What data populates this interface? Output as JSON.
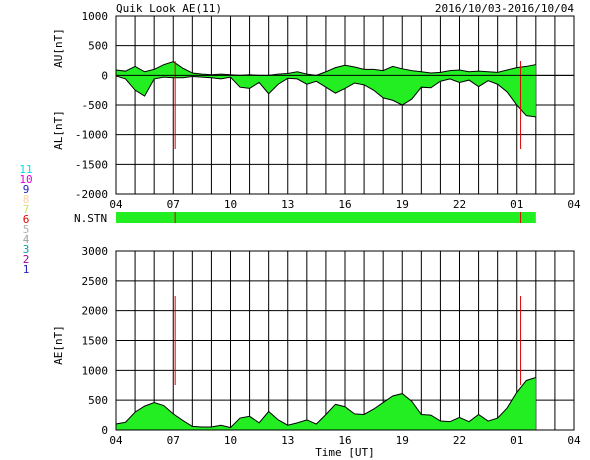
{
  "header": {
    "title": "Quik Look AE(11)",
    "date_range": "2016/10/03-2016/10/04"
  },
  "station_legend": [
    {
      "label": "11",
      "color": "#00e0e0"
    },
    {
      "label": "10",
      "color": "#e000e0"
    },
    {
      "label": "9",
      "color": "#2020c0"
    },
    {
      "label": "8",
      "color": "#ffd0a0"
    },
    {
      "label": "7",
      "color": "#d0e060"
    },
    {
      "label": "6",
      "color": "#e00000"
    },
    {
      "label": "5",
      "color": "#b0b0b0"
    },
    {
      "label": "4",
      "color": "#a0a0a0"
    },
    {
      "label": "3",
      "color": "#00a0a0"
    },
    {
      "label": "2",
      "color": "#a000a0"
    },
    {
      "label": "1",
      "color": "#2020c0"
    }
  ],
  "colors": {
    "fill": "#22ee22",
    "line": "#000000",
    "marker": "#dd0000",
    "grid": "#000000"
  },
  "chart_data": [
    {
      "type": "area",
      "panel": "AU/AL",
      "ylabel_top": "AU[nT]",
      "ylabel_bottom": "AL[nT]",
      "ylim": [
        -2000,
        1000
      ],
      "yticks": [
        1000,
        500,
        0,
        -500,
        -1000,
        -1500,
        -2000
      ],
      "x_tick_labels": [
        "04",
        "07",
        "10",
        "13",
        "16",
        "19",
        "22",
        "01",
        "04"
      ],
      "x_tick_hours": [
        0,
        3,
        6,
        9,
        12,
        15,
        18,
        21,
        24
      ],
      "xlim_hours": [
        0,
        24
      ],
      "grid": true,
      "x_hours": [
        0,
        0.5,
        1,
        1.5,
        2,
        2.5,
        3,
        3.5,
        4,
        4.5,
        5,
        5.5,
        6,
        6.5,
        7,
        7.5,
        8,
        8.5,
        9,
        9.5,
        10,
        10.5,
        11,
        11.5,
        12,
        12.5,
        13,
        13.5,
        14,
        14.5,
        15,
        15.5,
        16,
        16.5,
        17,
        17.5,
        18,
        18.5,
        19,
        19.5,
        20,
        20.5,
        21,
        21.5,
        22
      ],
      "series": [
        {
          "name": "AU",
          "values": [
            90,
            70,
            150,
            60,
            100,
            180,
            230,
            120,
            40,
            20,
            10,
            20,
            10,
            0,
            10,
            0,
            0,
            20,
            30,
            60,
            20,
            0,
            60,
            130,
            170,
            140,
            100,
            100,
            80,
            150,
            110,
            80,
            60,
            40,
            50,
            80,
            90,
            60,
            70,
            60,
            50,
            90,
            130,
            150,
            180
          ]
        },
        {
          "name": "AL",
          "values": [
            -10,
            -60,
            -250,
            -350,
            -60,
            -30,
            -40,
            -40,
            -20,
            -30,
            -40,
            -60,
            -30,
            -200,
            -220,
            -120,
            -310,
            -150,
            -50,
            -60,
            -150,
            -100,
            -200,
            -300,
            -220,
            -130,
            -160,
            -250,
            -380,
            -420,
            -500,
            -400,
            -200,
            -210,
            -100,
            -60,
            -120,
            -80,
            -190,
            -90,
            -150,
            -280,
            -500,
            -680,
            -700
          ]
        }
      ],
      "markers_hours": [
        3.1,
        21.2
      ]
    },
    {
      "type": "bar",
      "panel": "N.STN",
      "label": "N.STN",
      "xlim_hours": [
        0,
        24
      ],
      "extent_hours": [
        0,
        22
      ],
      "markers_hours": [
        3.1,
        21.2
      ]
    },
    {
      "type": "area",
      "panel": "AE",
      "ylabel": "AE[nT]",
      "xlabel": "Time [UT]",
      "ylim": [
        0,
        3000
      ],
      "yticks": [
        3000,
        2500,
        2000,
        1500,
        1000,
        500,
        0
      ],
      "x_tick_labels": [
        "04",
        "07",
        "10",
        "13",
        "16",
        "19",
        "22",
        "01",
        "04"
      ],
      "x_tick_hours": [
        0,
        3,
        6,
        9,
        12,
        15,
        18,
        21,
        24
      ],
      "xlim_hours": [
        0,
        24
      ],
      "grid": true,
      "x_hours": [
        0,
        0.5,
        1,
        1.5,
        2,
        2.5,
        3,
        3.5,
        4,
        4.5,
        5,
        5.5,
        6,
        6.5,
        7,
        7.5,
        8,
        8.5,
        9,
        9.5,
        10,
        10.5,
        11,
        11.5,
        12,
        12.5,
        13,
        13.5,
        14,
        14.5,
        15,
        15.5,
        16,
        16.5,
        17,
        17.5,
        18,
        18.5,
        19,
        19.5,
        20,
        20.5,
        21,
        21.5,
        22
      ],
      "series": [
        {
          "name": "AE",
          "values": [
            100,
            130,
            300,
            400,
            460,
            410,
            270,
            160,
            60,
            50,
            50,
            80,
            40,
            200,
            230,
            120,
            310,
            170,
            80,
            120,
            170,
            100,
            260,
            430,
            390,
            270,
            260,
            350,
            460,
            570,
            610,
            480,
            260,
            250,
            150,
            140,
            210,
            140,
            260,
            150,
            200,
            370,
            630,
            830,
            880
          ]
        }
      ],
      "markers_hours": [
        3.1,
        21.2
      ]
    }
  ],
  "panel_labels": {
    "nstn": "N.STN"
  }
}
